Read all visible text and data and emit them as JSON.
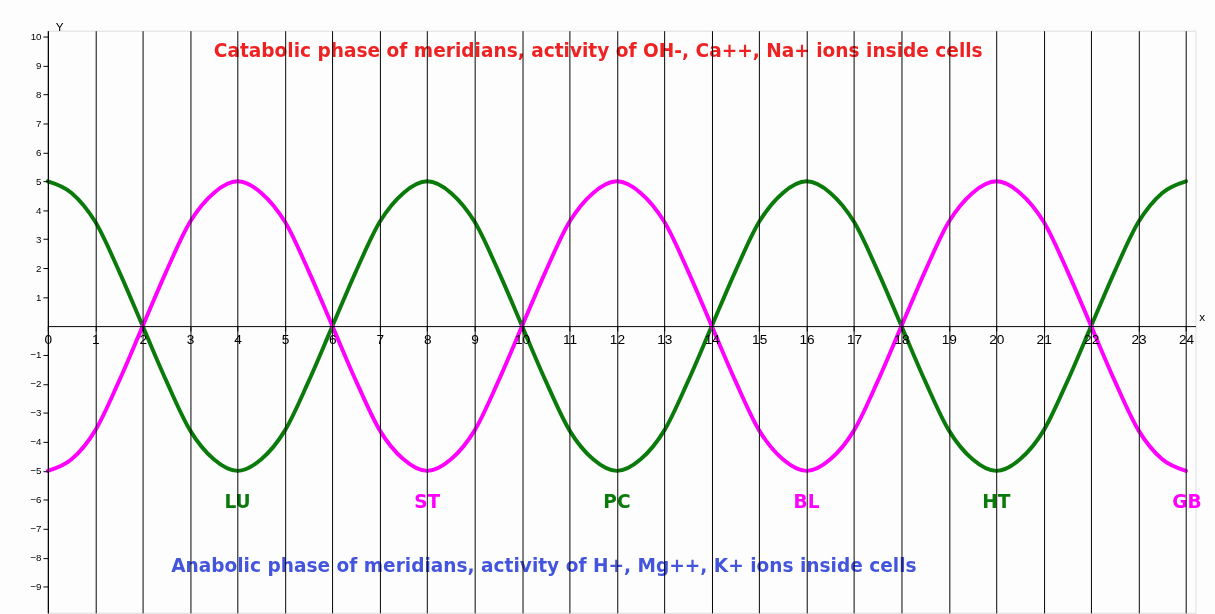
{
  "chart_data": {
    "type": "line",
    "title": "Catabolic phase of meridians, activity of OH-, Ca++, Na+ ions inside cells",
    "xlabel": "x",
    "ylabel": "Y",
    "x": [
      0,
      0.5,
      1,
      1.5,
      2,
      2.5,
      3,
      3.5,
      4,
      4.5,
      5,
      5.5,
      6,
      6.5,
      7,
      7.5,
      8,
      8.5,
      9,
      9.5,
      10,
      10.5,
      11,
      11.5,
      12,
      12.5,
      13,
      13.5,
      14,
      14.5,
      15,
      15.5,
      16,
      16.5,
      17,
      17.5,
      18,
      18.5,
      19,
      19.5,
      20,
      20.5,
      21,
      21.5,
      22,
      22.5,
      23,
      23.5,
      24
    ],
    "series": [
      {
        "color": "#0a7a0a",
        "values": [
          5,
          4.6,
          3.6,
          1.9,
          0,
          -1.9,
          -3.6,
          -4.6,
          -5,
          -4.6,
          -3.6,
          -1.9,
          0,
          1.9,
          3.6,
          4.6,
          5,
          4.6,
          3.6,
          1.9,
          0,
          -1.9,
          -3.6,
          -4.6,
          -5,
          -4.6,
          -3.6,
          -1.9,
          0,
          1.9,
          3.6,
          4.6,
          5,
          4.6,
          3.6,
          1.9,
          0,
          -1.9,
          -3.6,
          -4.6,
          -5,
          -4.6,
          -3.6,
          -1.9,
          0,
          1.9,
          3.6,
          4.6,
          5
        ]
      },
      {
        "color": "#ff00ff",
        "values": [
          -5,
          -4.6,
          -3.6,
          -1.9,
          0,
          1.9,
          3.6,
          4.6,
          5,
          4.6,
          3.6,
          1.9,
          0,
          -1.9,
          -3.6,
          -4.6,
          -5,
          -4.6,
          -3.6,
          -1.9,
          0,
          1.9,
          3.6,
          4.6,
          5,
          4.6,
          3.6,
          1.9,
          0,
          -1.9,
          -3.6,
          -4.6,
          -5,
          -4.6,
          -3.6,
          -1.9,
          0,
          1.9,
          3.6,
          4.6,
          5,
          4.6,
          3.6,
          1.9,
          0,
          -1.9,
          -3.6,
          -4.6,
          -5
        ]
      }
    ],
    "annotations": [
      {
        "text": "LU",
        "x": 4,
        "y": -5
      },
      {
        "text": "ST",
        "x": 8,
        "y": -5
      },
      {
        "text": "PC",
        "x": 12,
        "y": -5
      },
      {
        "text": "BL",
        "x": 16,
        "y": -5
      },
      {
        "text": "HT",
        "x": 20,
        "y": -5
      },
      {
        "text": "GB",
        "x": 24,
        "y": -5
      },
      "Anabolic phase of meridians, activity of H+, Mg++, K+ ions inside cells"
    ],
    "xlim": [
      0,
      24.2
    ],
    "ylim": [
      -9.9,
      10.2
    ],
    "xticks": [
      0,
      1,
      2,
      3,
      4,
      5,
      6,
      7,
      8,
      9,
      10,
      11,
      12,
      13,
      14,
      15,
      16,
      17,
      18,
      19,
      20,
      21,
      22,
      23,
      24
    ],
    "yticks": [
      -9,
      -8,
      -7,
      -6,
      -5,
      -4,
      -3,
      -2,
      -1,
      1,
      2,
      3,
      4,
      5,
      6,
      7,
      8,
      9,
      10
    ],
    "grid": "x",
    "marker": "none",
    "line_style": "solid"
  }
}
